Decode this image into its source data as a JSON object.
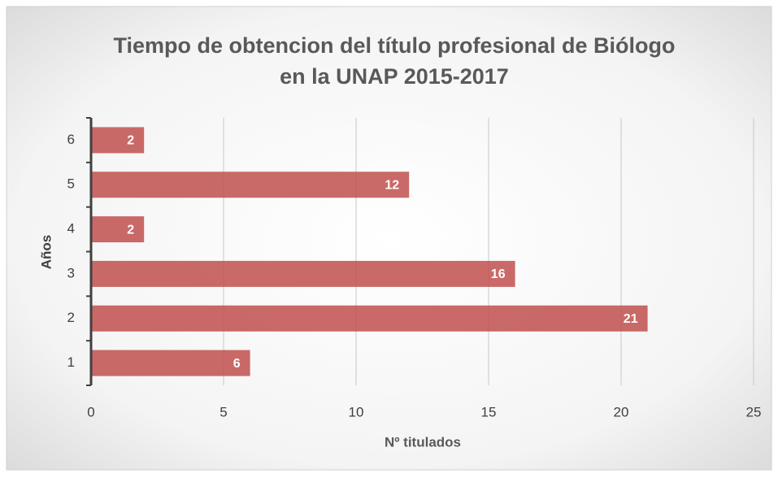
{
  "chart_data": {
    "type": "barh",
    "title": [
      "Tiempo de obtencion del título profesional de Biólogo",
      "en la UNAP 2015-2017"
    ],
    "xlabel": "Nº  titulados",
    "ylabel": "Años",
    "categories": [
      "1",
      "2",
      "3",
      "4",
      "5",
      "6"
    ],
    "values": [
      6,
      21,
      16,
      2,
      12,
      2
    ],
    "color": "#c0504d",
    "xlim": [
      0,
      25
    ],
    "xticks": [
      0,
      5,
      10,
      15,
      20,
      25
    ],
    "grid": true
  }
}
